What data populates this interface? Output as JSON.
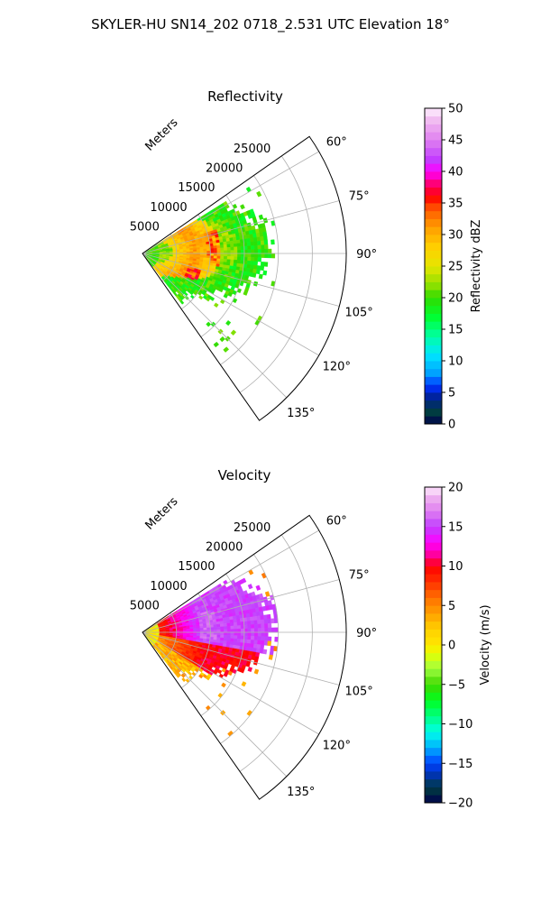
{
  "figure": {
    "title": "SKYLER-HU  SN14_202  0718_2.531 UTC Elevation 18°"
  },
  "chart_data": [
    {
      "type": "heatmap",
      "subtype": "polar-sector (radar PPI)",
      "title": "Reflectivity",
      "range_axis_label": "Meters",
      "range_ticks": [
        "5000",
        "10000",
        "15000",
        "20000",
        "25000"
      ],
      "range_tick_values": [
        5000,
        10000,
        15000,
        20000,
        25000
      ],
      "range_max": 30000,
      "azimuth_ticks": [
        "60°",
        "75°",
        "90°",
        "105°",
        "120°",
        "135°"
      ],
      "azimuth_tick_values": [
        60,
        75,
        90,
        105,
        120,
        135
      ],
      "azimuth_range": [
        55,
        145
      ],
      "grid": true,
      "colorbar": {
        "label": "Reflectivity dBZ",
        "min": 0,
        "max": 50,
        "ticks": [
          "0",
          "5",
          "10",
          "15",
          "20",
          "25",
          "30",
          "35",
          "40",
          "45",
          "50"
        ],
        "tick_values": [
          0,
          5,
          10,
          15,
          20,
          25,
          30,
          35,
          40,
          45,
          50
        ],
        "colormap": "NWSRef-like",
        "stops": [
          {
            "v": 0,
            "c": "#00004c"
          },
          {
            "v": 2,
            "c": "#004040"
          },
          {
            "v": 4,
            "c": "#00208a"
          },
          {
            "v": 6,
            "c": "#0030ff"
          },
          {
            "v": 8,
            "c": "#00a0ff"
          },
          {
            "v": 11,
            "c": "#00e6ff"
          },
          {
            "v": 14,
            "c": "#00ffa0"
          },
          {
            "v": 17,
            "c": "#00ff30"
          },
          {
            "v": 20,
            "c": "#30dc00"
          },
          {
            "v": 22,
            "c": "#8ee000"
          },
          {
            "v": 25,
            "c": "#e6e600"
          },
          {
            "v": 28,
            "c": "#ffd000"
          },
          {
            "v": 31,
            "c": "#ffa000"
          },
          {
            "v": 34,
            "c": "#ff5a00"
          },
          {
            "v": 36,
            "c": "#ff0000"
          },
          {
            "v": 38,
            "c": "#ff0070"
          },
          {
            "v": 40,
            "c": "#ff00ff"
          },
          {
            "v": 42,
            "c": "#c040ff"
          },
          {
            "v": 45,
            "c": "#e080f0"
          },
          {
            "v": 48,
            "c": "#f0b8f0"
          },
          {
            "v": 50,
            "c": "#fff0ff"
          }
        ]
      }
    },
    {
      "type": "heatmap",
      "subtype": "polar-sector (radar PPI)",
      "title": "Velocity",
      "range_axis_label": "Meters",
      "range_ticks": [
        "5000",
        "10000",
        "15000",
        "20000",
        "25000"
      ],
      "range_tick_values": [
        5000,
        10000,
        15000,
        20000,
        25000
      ],
      "range_max": 30000,
      "azimuth_ticks": [
        "60°",
        "75°",
        "90°",
        "105°",
        "120°",
        "135°"
      ],
      "azimuth_tick_values": [
        60,
        75,
        90,
        105,
        120,
        135
      ],
      "azimuth_range": [
        55,
        145
      ],
      "grid": true,
      "colorbar": {
        "label": "Velocity (m/s)",
        "min": -20,
        "max": 20,
        "ticks": [
          "−20",
          "−15",
          "−10",
          "−5",
          "0",
          "5",
          "10",
          "15",
          "20"
        ],
        "tick_values": [
          -20,
          -15,
          -10,
          -5,
          0,
          5,
          10,
          15,
          20
        ],
        "colormap": "NWSVel-like",
        "stops": [
          {
            "v": -20,
            "c": "#00004c"
          },
          {
            "v": -18,
            "c": "#004040"
          },
          {
            "v": -17,
            "c": "#003090"
          },
          {
            "v": -15,
            "c": "#0040ff"
          },
          {
            "v": -13,
            "c": "#00b0ff"
          },
          {
            "v": -11,
            "c": "#00ffe8"
          },
          {
            "v": -9,
            "c": "#00ff80"
          },
          {
            "v": -7,
            "c": "#00ff20"
          },
          {
            "v": -5,
            "c": "#40d800"
          },
          {
            "v": -3,
            "c": "#a0ff40"
          },
          {
            "v": -1,
            "c": "#e6ff00"
          },
          {
            "v": 0,
            "c": "#ffe600"
          },
          {
            "v": 2,
            "c": "#ffd000"
          },
          {
            "v": 4,
            "c": "#ffa000"
          },
          {
            "v": 6,
            "c": "#ff7000"
          },
          {
            "v": 8,
            "c": "#ff3000"
          },
          {
            "v": 10,
            "c": "#ff0000"
          },
          {
            "v": 11,
            "c": "#ff0080"
          },
          {
            "v": 13,
            "c": "#ff00ff"
          },
          {
            "v": 15,
            "c": "#c040ff"
          },
          {
            "v": 17,
            "c": "#e080f0"
          },
          {
            "v": 19,
            "c": "#f0b8f0"
          },
          {
            "v": 20,
            "c": "#fff0ff"
          }
        ]
      }
    }
  ]
}
